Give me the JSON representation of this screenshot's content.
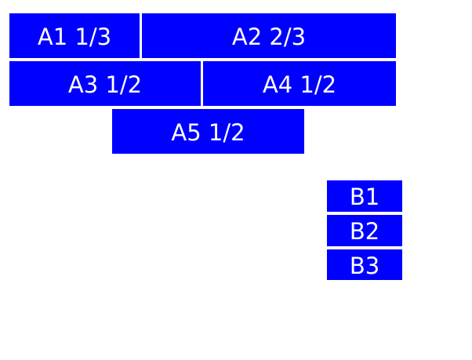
{
  "colors": {
    "background": "#ffffff",
    "box": "#0000ff",
    "label": "#ffffff"
  },
  "group_a": {
    "items": [
      {
        "label": "A1 1/3"
      },
      {
        "label": "A2 2/3"
      },
      {
        "label": "A3 1/2"
      },
      {
        "label": "A4 1/2"
      },
      {
        "label": "A5 1/2"
      }
    ]
  },
  "group_b": {
    "items": [
      {
        "label": "B1"
      },
      {
        "label": "B2"
      },
      {
        "label": "B3"
      }
    ]
  }
}
